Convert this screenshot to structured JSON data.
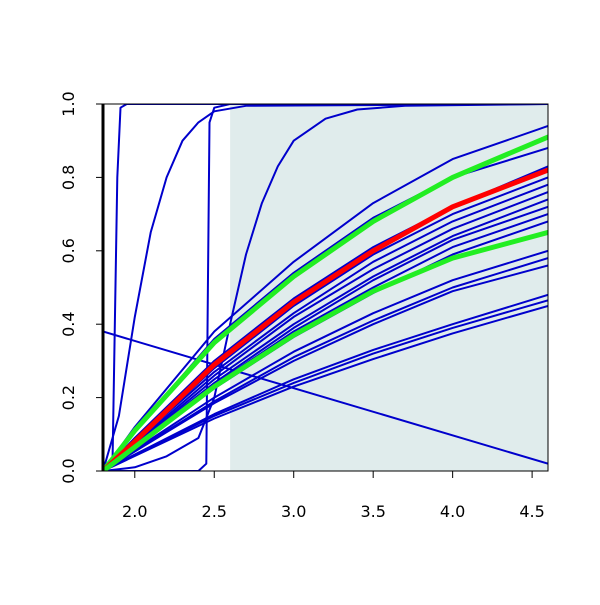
{
  "chart_data": {
    "type": "line",
    "title": "",
    "xlabel": "",
    "ylabel": "",
    "xlim": [
      1.8,
      4.6
    ],
    "ylim": [
      0.0,
      1.0
    ],
    "x_ticks": [
      "2.0",
      "2.5",
      "3.0",
      "3.5",
      "4.0",
      "4.5"
    ],
    "y_ticks": [
      "0.0",
      "0.2",
      "0.4",
      "0.6",
      "0.8",
      "1.0"
    ],
    "grid": false,
    "legend": "none",
    "shaded_region": {
      "x_from": 2.6,
      "x_to": 4.6,
      "color": "#e0ecec"
    },
    "colors": {
      "main": "#0000cc",
      "highlight_red": "#ff0000",
      "highlight_green": "#22ee22"
    },
    "series": [
      {
        "color": "#0000cc",
        "points": [
          [
            1.8,
            0.0
          ],
          [
            1.86,
            0.02
          ],
          [
            1.89,
            0.8
          ],
          [
            1.91,
            0.99
          ],
          [
            1.95,
            1.0
          ],
          [
            4.6,
            1.0
          ]
        ]
      },
      {
        "color": "#0000cc",
        "points": [
          [
            1.8,
            0.0
          ],
          [
            1.9,
            0.15
          ],
          [
            2.0,
            0.42
          ],
          [
            2.1,
            0.65
          ],
          [
            2.2,
            0.8
          ],
          [
            2.3,
            0.9
          ],
          [
            2.4,
            0.95
          ],
          [
            2.5,
            0.98
          ],
          [
            2.7,
            0.995
          ],
          [
            4.6,
            1.0
          ]
        ]
      },
      {
        "color": "#0000cc",
        "points": [
          [
            1.8,
            0.0
          ],
          [
            2.4,
            0.0
          ],
          [
            2.45,
            0.02
          ],
          [
            2.46,
            0.5
          ],
          [
            2.47,
            0.95
          ],
          [
            2.5,
            0.99
          ],
          [
            2.6,
            1.0
          ],
          [
            4.6,
            1.0
          ]
        ]
      },
      {
        "color": "#0000cc",
        "points": [
          [
            1.8,
            0.0
          ],
          [
            2.0,
            0.01
          ],
          [
            2.2,
            0.04
          ],
          [
            2.4,
            0.09
          ],
          [
            2.5,
            0.2
          ],
          [
            2.6,
            0.4
          ],
          [
            2.7,
            0.59
          ],
          [
            2.8,
            0.73
          ],
          [
            2.9,
            0.83
          ],
          [
            3.0,
            0.9
          ],
          [
            3.2,
            0.96
          ],
          [
            3.4,
            0.985
          ],
          [
            3.7,
            0.995
          ],
          [
            4.6,
            1.0
          ]
        ]
      },
      {
        "color": "#0000cc",
        "points": [
          [
            1.8,
            0.38
          ],
          [
            4.6,
            0.02
          ]
        ]
      },
      {
        "color": "#0000cc",
        "points": [
          [
            1.8,
            0.0
          ],
          [
            2.0,
            0.12
          ],
          [
            2.5,
            0.38
          ],
          [
            3.0,
            0.57
          ],
          [
            3.5,
            0.73
          ],
          [
            4.0,
            0.85
          ],
          [
            4.6,
            0.94
          ]
        ]
      },
      {
        "color": "#0000cc",
        "points": [
          [
            1.8,
            0.0
          ],
          [
            2.0,
            0.11
          ],
          [
            2.5,
            0.36
          ],
          [
            3.0,
            0.54
          ],
          [
            3.5,
            0.69
          ],
          [
            4.0,
            0.8
          ],
          [
            4.6,
            0.88
          ]
        ]
      },
      {
        "color": "#0000cc",
        "points": [
          [
            1.8,
            0.0
          ],
          [
            2.0,
            0.09
          ],
          [
            2.5,
            0.3
          ],
          [
            3.0,
            0.47
          ],
          [
            3.5,
            0.61
          ],
          [
            4.0,
            0.72
          ],
          [
            4.6,
            0.83
          ]
        ]
      },
      {
        "color": "#0000cc",
        "points": [
          [
            1.8,
            0.0
          ],
          [
            2.0,
            0.08
          ],
          [
            2.5,
            0.28
          ],
          [
            3.0,
            0.45
          ],
          [
            3.5,
            0.59
          ],
          [
            4.0,
            0.7
          ],
          [
            4.6,
            0.8
          ]
        ]
      },
      {
        "color": "#0000cc",
        "points": [
          [
            1.8,
            0.0
          ],
          [
            2.0,
            0.08
          ],
          [
            2.5,
            0.27
          ],
          [
            3.0,
            0.43
          ],
          [
            3.5,
            0.57
          ],
          [
            4.0,
            0.68
          ],
          [
            4.6,
            0.78
          ]
        ]
      },
      {
        "color": "#0000cc",
        "points": [
          [
            1.8,
            0.0
          ],
          [
            2.0,
            0.075
          ],
          [
            2.5,
            0.26
          ],
          [
            3.0,
            0.42
          ],
          [
            3.5,
            0.55
          ],
          [
            4.0,
            0.66
          ],
          [
            4.6,
            0.76
          ]
        ]
      },
      {
        "color": "#0000cc",
        "points": [
          [
            1.8,
            0.0
          ],
          [
            2.0,
            0.072
          ],
          [
            2.5,
            0.25
          ],
          [
            3.0,
            0.4
          ],
          [
            3.5,
            0.53
          ],
          [
            4.0,
            0.64
          ],
          [
            4.6,
            0.74
          ]
        ]
      },
      {
        "color": "#0000cc",
        "points": [
          [
            1.8,
            0.0
          ],
          [
            2.0,
            0.07
          ],
          [
            2.5,
            0.24
          ],
          [
            3.0,
            0.39
          ],
          [
            3.5,
            0.52
          ],
          [
            4.0,
            0.63
          ],
          [
            4.6,
            0.72
          ]
        ]
      },
      {
        "color": "#0000cc",
        "points": [
          [
            1.8,
            0.0
          ],
          [
            2.0,
            0.068
          ],
          [
            2.5,
            0.235
          ],
          [
            3.0,
            0.38
          ],
          [
            3.5,
            0.5
          ],
          [
            4.0,
            0.61
          ],
          [
            4.6,
            0.7
          ]
        ]
      },
      {
        "color": "#0000cc",
        "points": [
          [
            1.8,
            0.0
          ],
          [
            2.0,
            0.065
          ],
          [
            2.5,
            0.225
          ],
          [
            3.0,
            0.365
          ],
          [
            3.5,
            0.485
          ],
          [
            4.0,
            0.59
          ],
          [
            4.6,
            0.68
          ]
        ]
      },
      {
        "color": "#0000cc",
        "points": [
          [
            1.8,
            0.0
          ],
          [
            2.0,
            0.058
          ],
          [
            2.5,
            0.2
          ],
          [
            3.0,
            0.325
          ],
          [
            3.5,
            0.43
          ],
          [
            4.0,
            0.52
          ],
          [
            4.6,
            0.6
          ]
        ]
      },
      {
        "color": "#0000cc",
        "points": [
          [
            1.8,
            0.0
          ],
          [
            2.0,
            0.055
          ],
          [
            2.5,
            0.19
          ],
          [
            3.0,
            0.31
          ],
          [
            3.5,
            0.41
          ],
          [
            4.0,
            0.5
          ],
          [
            4.6,
            0.58
          ]
        ]
      },
      {
        "color": "#0000cc",
        "points": [
          [
            1.8,
            0.0
          ],
          [
            2.0,
            0.053
          ],
          [
            2.5,
            0.185
          ],
          [
            3.0,
            0.3
          ],
          [
            3.5,
            0.4
          ],
          [
            4.0,
            0.49
          ],
          [
            4.6,
            0.56
          ]
        ]
      },
      {
        "color": "#0000cc",
        "points": [
          [
            1.8,
            0.0
          ],
          [
            2.0,
            0.045
          ],
          [
            2.5,
            0.155
          ],
          [
            3.0,
            0.25
          ],
          [
            3.5,
            0.33
          ],
          [
            4.0,
            0.4
          ],
          [
            4.6,
            0.48
          ]
        ]
      },
      {
        "color": "#0000cc",
        "points": [
          [
            1.8,
            0.0
          ],
          [
            2.0,
            0.043
          ],
          [
            2.5,
            0.15
          ],
          [
            3.0,
            0.24
          ],
          [
            3.5,
            0.32
          ],
          [
            4.0,
            0.39
          ],
          [
            4.6,
            0.465
          ]
        ]
      },
      {
        "color": "#0000cc",
        "points": [
          [
            1.8,
            0.0
          ],
          [
            2.0,
            0.041
          ],
          [
            2.5,
            0.143
          ],
          [
            3.0,
            0.23
          ],
          [
            3.5,
            0.305
          ],
          [
            4.0,
            0.375
          ],
          [
            4.6,
            0.45
          ]
        ]
      },
      {
        "color": "#22ee22",
        "width": 5,
        "points": [
          [
            1.8,
            0.0
          ],
          [
            2.0,
            0.11
          ],
          [
            2.5,
            0.35
          ],
          [
            3.0,
            0.53
          ],
          [
            3.5,
            0.68
          ],
          [
            4.0,
            0.8
          ],
          [
            4.6,
            0.91
          ]
        ]
      },
      {
        "color": "#ff0000",
        "width": 5,
        "points": [
          [
            1.8,
            0.0
          ],
          [
            2.0,
            0.08
          ],
          [
            2.5,
            0.29
          ],
          [
            3.0,
            0.46
          ],
          [
            3.5,
            0.6
          ],
          [
            4.0,
            0.72
          ],
          [
            4.6,
            0.82
          ]
        ]
      },
      {
        "color": "#22ee22",
        "width": 5,
        "points": [
          [
            1.8,
            0.0
          ],
          [
            2.0,
            0.065
          ],
          [
            2.5,
            0.23
          ],
          [
            3.0,
            0.37
          ],
          [
            3.5,
            0.49
          ],
          [
            4.0,
            0.58
          ],
          [
            4.6,
            0.65
          ]
        ]
      }
    ]
  }
}
